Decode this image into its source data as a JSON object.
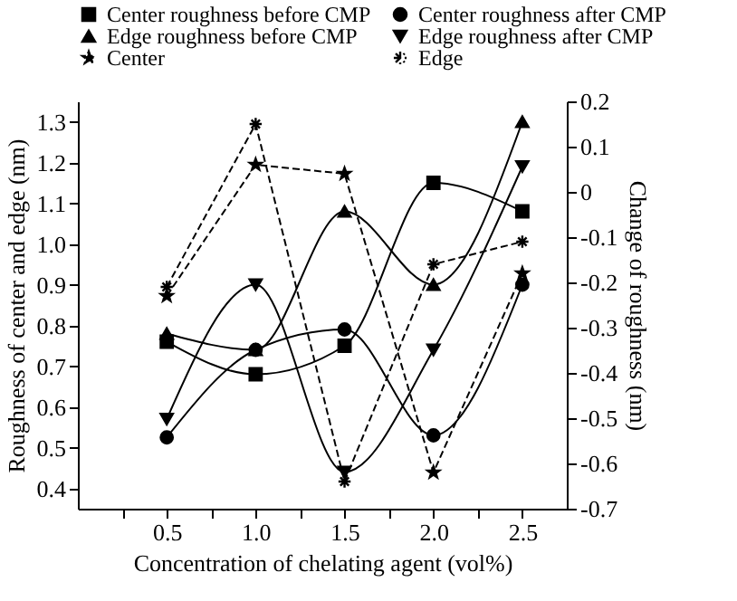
{
  "chart_data": {
    "type": "line",
    "xlabel": "Concentration of chelating agent (vol%)",
    "ylabel": "Roughness of center and edge (nm)",
    "y2label": "Change of roughness (nm)",
    "x": [
      0.5,
      1.0,
      1.5,
      2.0,
      2.5
    ],
    "xlim": [
      0,
      2.75
    ],
    "xticks": [
      {
        "value": 0.25,
        "label": null
      },
      0.5,
      {
        "value": 0.75,
        "label": null
      },
      {
        "value": 1,
        "label": "1.0"
      },
      {
        "value": 1.25,
        "label": null
      },
      1.5,
      {
        "value": 1.75,
        "label": null
      },
      {
        "value": 2,
        "label": "2.0"
      },
      {
        "value": 2.25,
        "label": null
      },
      2.5
    ],
    "ylim": [
      0.35,
      1.35
    ],
    "yticks": [
      0.4,
      0.5,
      0.6,
      0.7,
      0.8,
      0.9,
      {
        "value": 1,
        "label": "1.0"
      },
      1.1,
      1.2,
      1.3
    ],
    "y2lim": [
      -0.7,
      0.2
    ],
    "y2ticks": [
      -0.7,
      -0.6,
      -0.5,
      -0.4,
      -0.3,
      -0.2,
      -0.1,
      0,
      0.1,
      0.2
    ],
    "grid": false,
    "legend": "top",
    "series": [
      {
        "name": "Center roughness before CMP",
        "color": "#000000",
        "marker": "square",
        "line_style": "solid",
        "values": [
          0.76,
          0.68,
          0.75,
          1.15,
          1.08
        ]
      },
      {
        "name": "Center roughness after CMP",
        "color": "#000000",
        "marker": "circle",
        "line_style": "solid",
        "values": [
          0.525,
          0.74,
          0.79,
          0.53,
          0.9
        ]
      },
      {
        "name": "Edge roughness before CMP",
        "color": "#000000",
        "marker": "triangle",
        "line_style": "solid",
        "values": [
          0.78,
          0.74,
          1.08,
          0.9,
          1.3
        ]
      },
      {
        "name": "Edge roughness after CMP",
        "color": "#000000",
        "marker": "triangle-down",
        "line_style": "solid",
        "values": [
          0.57,
          0.9,
          0.44,
          0.74,
          1.19
        ]
      },
      {
        "name": "Center",
        "color": "#000000",
        "marker": "star",
        "line_style": "dashed",
        "axis": "y2",
        "values": [
          -0.23,
          0.06,
          0.04,
          -0.62,
          -0.18
        ]
      },
      {
        "name": "Edge",
        "color": "#000000",
        "marker": "cross",
        "line_style": "dashed",
        "axis": "y2",
        "values": [
          -0.21,
          0.15,
          -0.64,
          -0.16,
          -0.11
        ]
      }
    ]
  }
}
